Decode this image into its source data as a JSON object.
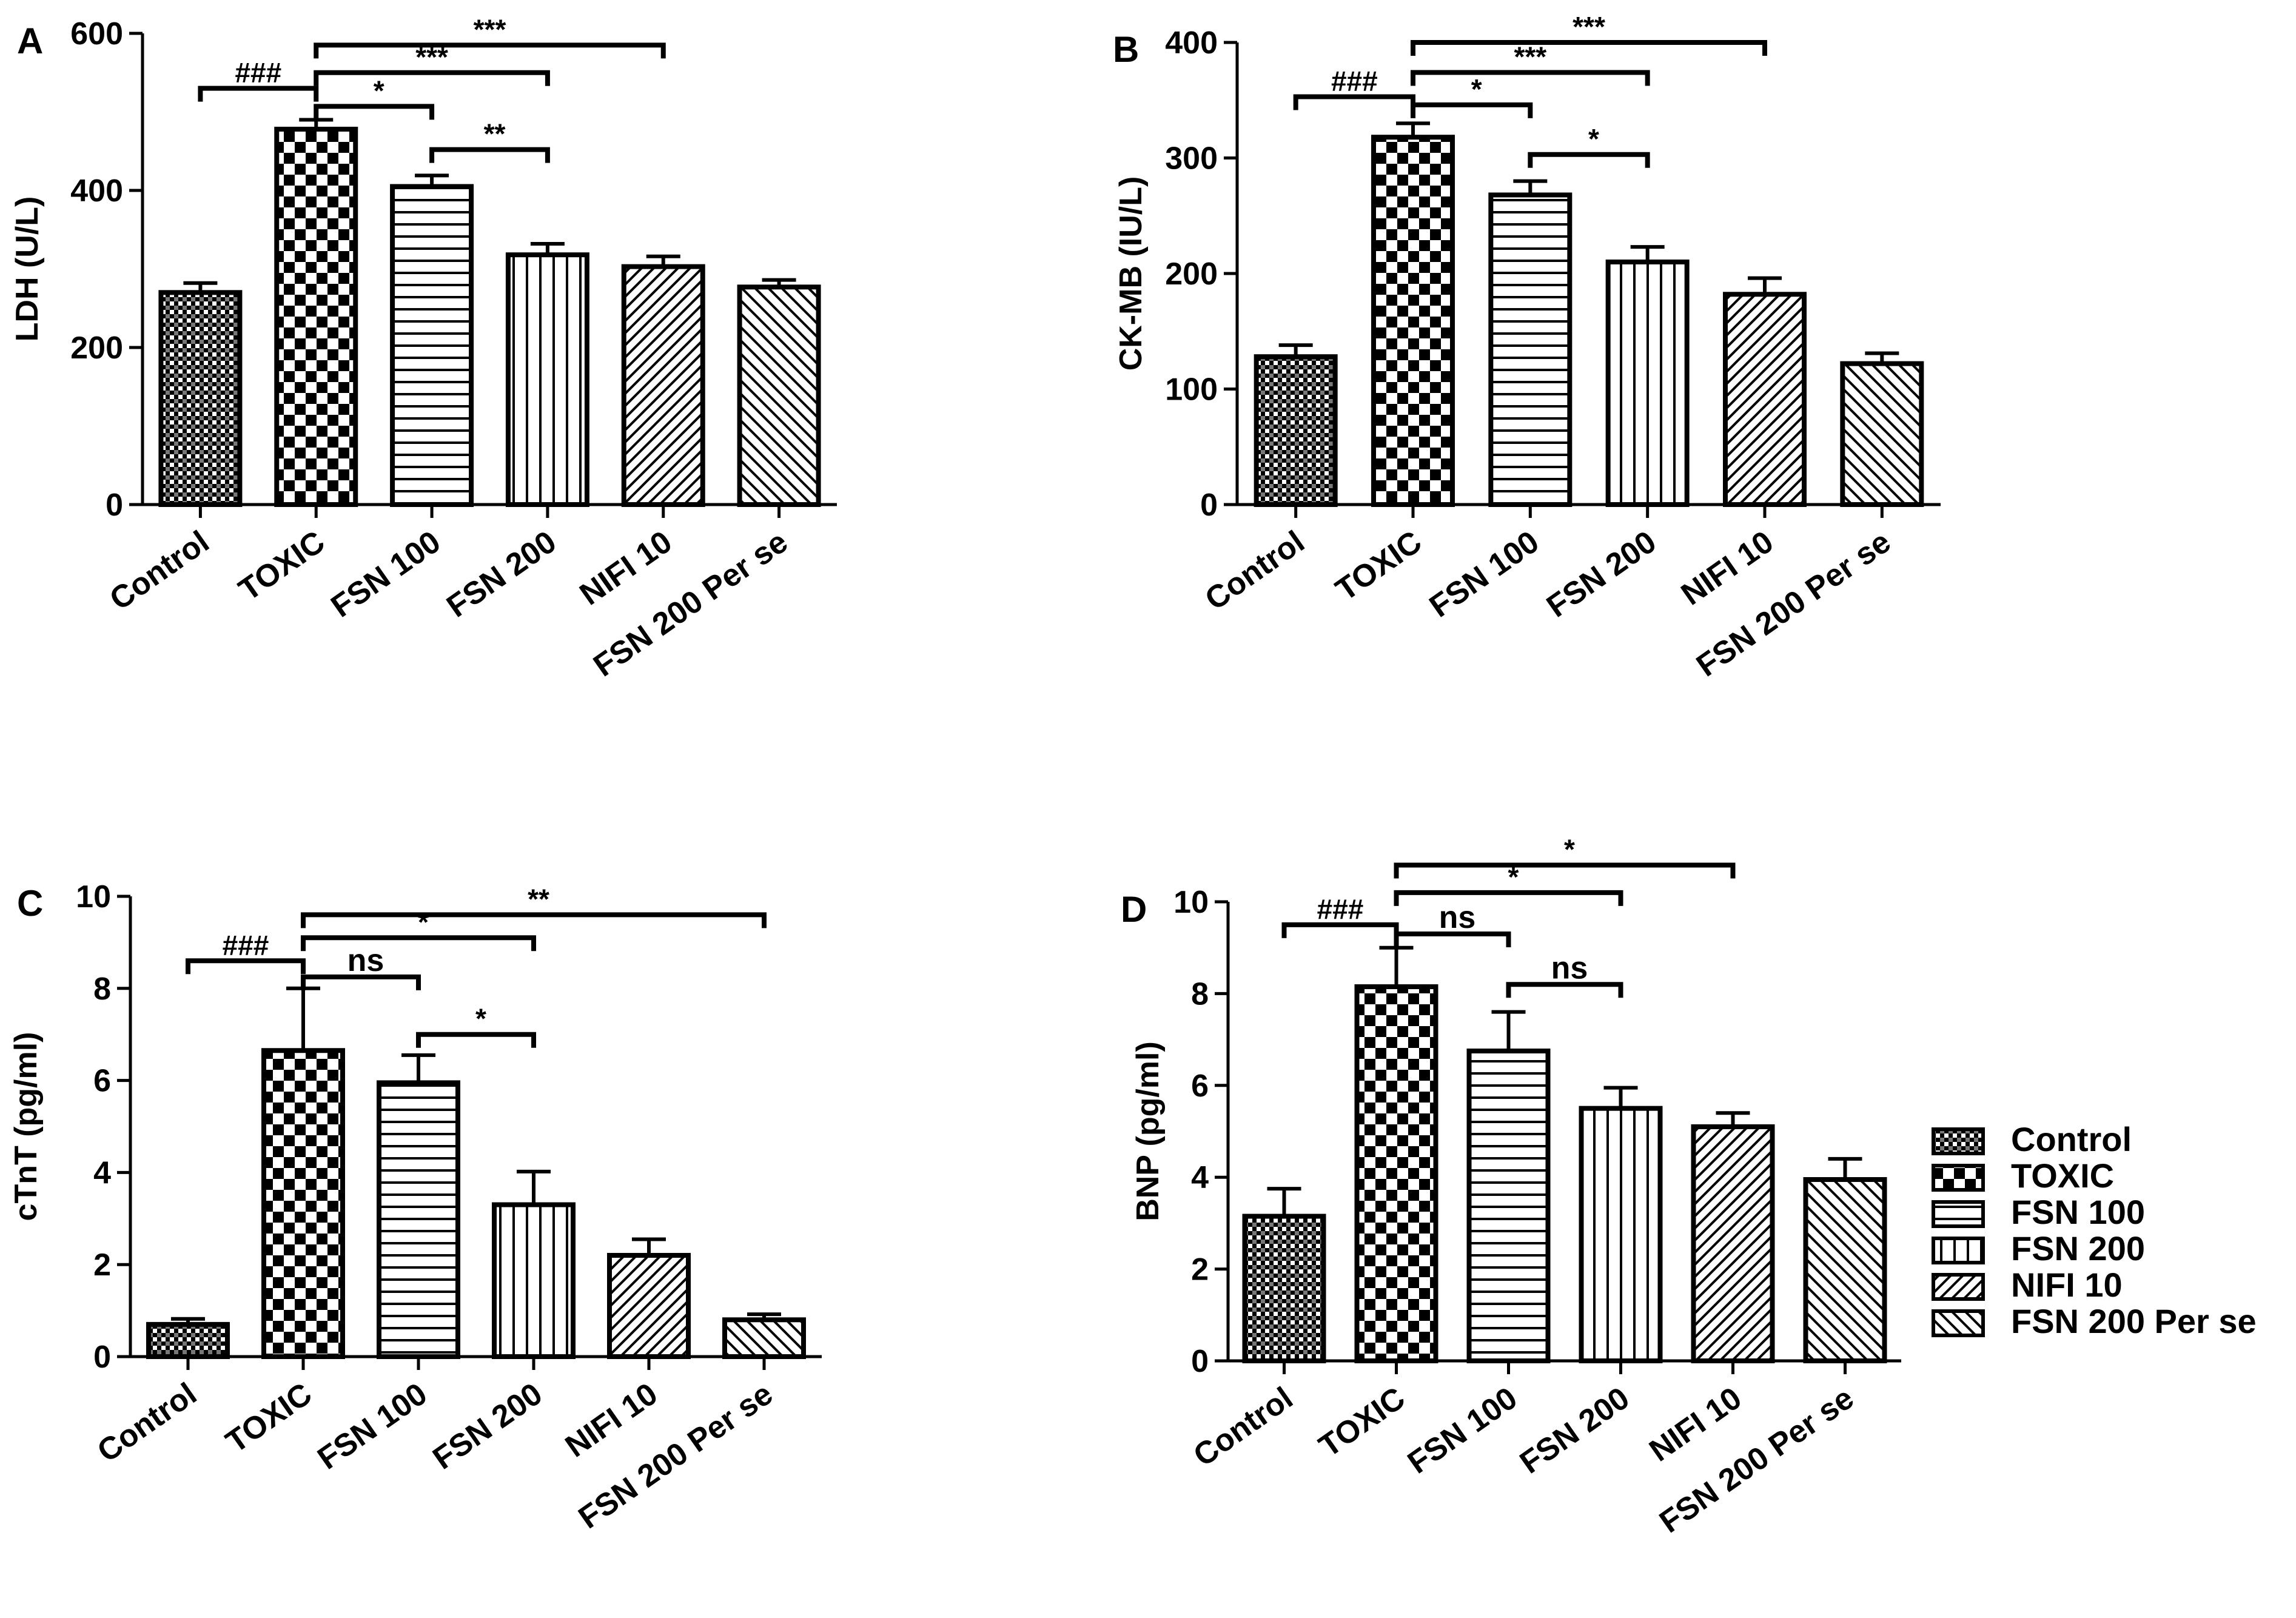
{
  "chart_data": [
    {
      "type": "bar",
      "panel_label": "A",
      "title": "",
      "xlabel": "",
      "ylabel": "LDH (U/L)",
      "ylim": [
        0,
        600
      ],
      "yticks": [
        0,
        200,
        400,
        600
      ],
      "ytick_labels": [
        "0",
        "200",
        "400",
        "600"
      ],
      "categories": [
        "Control",
        "TOXIC",
        "FSN 100",
        "FSN 200",
        "NIFI 10",
        "FSN 200 Per se"
      ],
      "values": [
        270,
        478,
        405,
        318,
        303,
        277
      ],
      "errors": [
        12,
        12,
        14,
        14,
        13,
        9
      ],
      "brackets": [
        {
          "from": 0,
          "to": 1,
          "y": 530,
          "label": "###"
        },
        {
          "from": 1,
          "to": 2,
          "y": 507,
          "label": "*"
        },
        {
          "from": 1,
          "to": 3,
          "y": 550,
          "label": "***"
        },
        {
          "from": 1,
          "to": 4,
          "y": 585,
          "label": "***"
        },
        {
          "from": 2,
          "to": 3,
          "y": 452,
          "label": "**"
        }
      ]
    },
    {
      "type": "bar",
      "panel_label": "B",
      "title": "",
      "xlabel": "",
      "ylabel": "CK-MB (IU/L)",
      "ylim": [
        0,
        400
      ],
      "yticks": [
        0,
        100,
        200,
        300,
        400
      ],
      "ytick_labels": [
        "0",
        "100",
        "200",
        "300",
        "400"
      ],
      "categories": [
        "Control",
        "TOXIC",
        "FSN 100",
        "FSN 200",
        "NIFI 10",
        "FSN 200 Per se"
      ],
      "values": [
        128,
        318,
        268,
        210,
        182,
        122
      ],
      "errors": [
        10,
        12,
        12,
        13,
        14,
        9
      ],
      "brackets": [
        {
          "from": 0,
          "to": 1,
          "y": 353,
          "label": "###"
        },
        {
          "from": 1,
          "to": 2,
          "y": 346,
          "label": "*"
        },
        {
          "from": 1,
          "to": 3,
          "y": 374,
          "label": "***"
        },
        {
          "from": 1,
          "to": 4,
          "y": 400,
          "label": "***"
        },
        {
          "from": 2,
          "to": 3,
          "y": 303,
          "label": "*"
        }
      ]
    },
    {
      "type": "bar",
      "panel_label": "C",
      "title": "",
      "xlabel": "",
      "ylabel": "cTnT (pg/ml)",
      "ylim": [
        0,
        10
      ],
      "yticks": [
        0,
        2,
        4,
        6,
        8,
        10
      ],
      "ytick_labels": [
        "0",
        "2",
        "4",
        "6",
        "8",
        "10"
      ],
      "categories": [
        "Control",
        "TOXIC",
        "FSN 100",
        "FSN 200",
        "NIFI 10",
        "FSN 200 Per se"
      ],
      "values": [
        0.7,
        6.65,
        5.95,
        3.3,
        2.2,
        0.8
      ],
      "errors": [
        0.12,
        1.35,
        0.6,
        0.72,
        0.35,
        0.12
      ],
      "brackets": [
        {
          "from": 0,
          "to": 1,
          "y": 8.6,
          "label": "###"
        },
        {
          "from": 1,
          "to": 2,
          "y": 8.25,
          "label": "ns"
        },
        {
          "from": 1,
          "to": 3,
          "y": 9.1,
          "label": "*"
        },
        {
          "from": 1,
          "to": 5,
          "y": 9.6,
          "label": "**"
        },
        {
          "from": 2,
          "to": 3,
          "y": 7.0,
          "label": "*"
        }
      ]
    },
    {
      "type": "bar",
      "panel_label": "D",
      "title": "",
      "xlabel": "",
      "ylabel": "BNP (pg/ml)",
      "ylim": [
        0,
        10
      ],
      "yticks": [
        0,
        2,
        4,
        6,
        8,
        10
      ],
      "ytick_labels": [
        "0",
        "2",
        "4",
        "6",
        "8",
        "10"
      ],
      "categories": [
        "Control",
        "TOXIC",
        "FSN 100",
        "FSN 200",
        "NIFI 10",
        "FSN 200 Per se"
      ],
      "values": [
        3.15,
        8.15,
        6.75,
        5.5,
        5.1,
        3.95
      ],
      "errors": [
        0.6,
        0.85,
        0.85,
        0.45,
        0.3,
        0.45
      ],
      "brackets": [
        {
          "from": 0,
          "to": 1,
          "y": 9.5,
          "label": "###"
        },
        {
          "from": 1,
          "to": 2,
          "y": 9.3,
          "label": "ns"
        },
        {
          "from": 1,
          "to": 3,
          "y": 10.2,
          "label": "*"
        },
        {
          "from": 1,
          "to": 4,
          "y": 10.8,
          "label": "*"
        },
        {
          "from": 2,
          "to": 3,
          "y": 8.2,
          "label": "ns"
        }
      ]
    }
  ],
  "legend": {
    "placement": "right of panel D",
    "items": [
      "Control",
      "TOXIC",
      "FSN 100",
      "FSN 200",
      "NIFI 10",
      "FSN 200 Per se"
    ]
  }
}
